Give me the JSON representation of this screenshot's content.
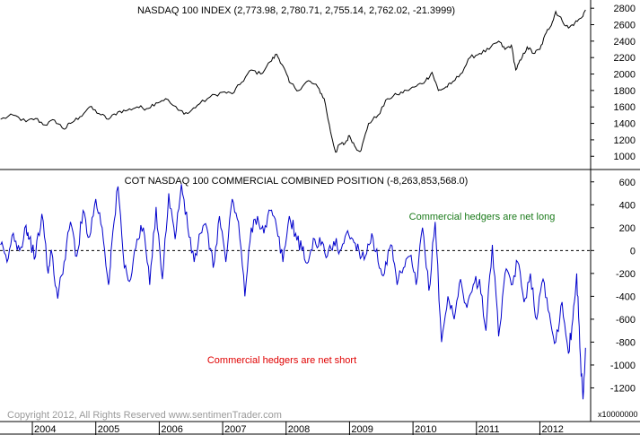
{
  "chart_data": [
    {
      "type": "line",
      "title": "NASDAQ 100 INDEX (2,773.98, 2,780.71, 2,755.14, 2,762.02, -21.3999)",
      "ylim": [
        850,
        2900
      ],
      "y_ticks": [
        1000,
        1200,
        1400,
        1600,
        1800,
        2000,
        2200,
        2400,
        2600,
        2800
      ],
      "y_tick_labels": [
        "1000",
        "1200",
        "1400",
        "1600",
        "1800",
        "2000",
        "2200",
        "2400",
        "2600",
        "2800"
      ],
      "grid": false,
      "series": [
        {
          "color": "#000000",
          "x": [
            2003.5,
            2003.7,
            2003.9,
            2004.05,
            2004.2,
            2004.35,
            2004.5,
            2004.6,
            2004.75,
            2004.9,
            2005.05,
            2005.2,
            2005.35,
            2005.5,
            2005.65,
            2005.8,
            2005.95,
            2006.1,
            2006.3,
            2006.45,
            2006.6,
            2006.8,
            2007.0,
            2007.15,
            2007.3,
            2007.45,
            2007.6,
            2007.75,
            2007.85,
            2007.95,
            2008.05,
            2008.2,
            2008.35,
            2008.5,
            2008.6,
            2008.7,
            2008.78,
            2008.85,
            2008.92,
            2009.0,
            2009.1,
            2009.18,
            2009.3,
            2009.45,
            2009.6,
            2009.75,
            2009.9,
            2010.05,
            2010.2,
            2010.3,
            2010.4,
            2010.5,
            2010.6,
            2010.75,
            2010.9,
            2011.05,
            2011.2,
            2011.35,
            2011.45,
            2011.55,
            2011.62,
            2011.7,
            2011.8,
            2011.9,
            2012.0,
            2012.1,
            2012.2,
            2012.25,
            2012.35,
            2012.45,
            2012.55,
            2012.65,
            2012.72
          ],
          "y": [
            1450,
            1500,
            1420,
            1460,
            1380,
            1440,
            1330,
            1400,
            1480,
            1600,
            1520,
            1450,
            1540,
            1560,
            1600,
            1580,
            1650,
            1700,
            1560,
            1520,
            1620,
            1720,
            1780,
            1760,
            1900,
            2050,
            2000,
            2150,
            2240,
            2100,
            1900,
            1800,
            1920,
            1840,
            1700,
            1300,
            1050,
            1150,
            1150,
            1250,
            1100,
            1070,
            1400,
            1500,
            1700,
            1750,
            1800,
            1850,
            1920,
            2020,
            1800,
            1830,
            1880,
            2000,
            2200,
            2250,
            2300,
            2400,
            2300,
            2350,
            2050,
            2170,
            2330,
            2250,
            2300,
            2500,
            2640,
            2760,
            2650,
            2560,
            2620,
            2680,
            2780
          ]
        }
      ]
    },
    {
      "type": "line",
      "title": "COT NASDAQ 100 COMMERCIAL COMBINED POSITION (-8,263,853,568.0)",
      "ylim": [
        -1400,
        700
      ],
      "y_ticks": [
        -1200,
        -1000,
        -800,
        -600,
        -400,
        -200,
        0,
        200,
        400,
        600
      ],
      "y_tick_labels": [
        "-1200",
        "-1000",
        "-800",
        "-600",
        "-400",
        "-200",
        "0",
        "200",
        "400",
        "600"
      ],
      "y_multiplier": "x10000000",
      "reference_line": 0,
      "grid": false,
      "annotations": [
        {
          "text": "Commercial hedgers are net long",
          "color": "#1a7a1a"
        },
        {
          "text": "Commercial hedgers are net short",
          "color": "#e00000"
        }
      ],
      "series": [
        {
          "color": "#0000cc",
          "x": [
            2003.5,
            2003.6,
            2003.7,
            2003.8,
            2003.9,
            2003.95,
            2004.05,
            2004.15,
            2004.25,
            2004.3,
            2004.4,
            2004.5,
            2004.6,
            2004.7,
            2004.8,
            2004.9,
            2005.0,
            2005.1,
            2005.2,
            2005.25,
            2005.35,
            2005.45,
            2005.55,
            2005.65,
            2005.75,
            2005.85,
            2005.95,
            2006.05,
            2006.15,
            2006.25,
            2006.35,
            2006.45,
            2006.55,
            2006.65,
            2006.75,
            2006.85,
            2006.95,
            2007.05,
            2007.15,
            2007.25,
            2007.35,
            2007.45,
            2007.55,
            2007.65,
            2007.75,
            2007.85,
            2007.95,
            2008.05,
            2008.15,
            2008.25,
            2008.35,
            2008.45,
            2008.55,
            2008.65,
            2008.75,
            2008.85,
            2008.95,
            2009.05,
            2009.15,
            2009.25,
            2009.35,
            2009.45,
            2009.55,
            2009.65,
            2009.75,
            2009.85,
            2009.95,
            2010.05,
            2010.15,
            2010.25,
            2010.35,
            2010.45,
            2010.55,
            2010.65,
            2010.75,
            2010.85,
            2010.95,
            2011.05,
            2011.15,
            2011.25,
            2011.35,
            2011.45,
            2011.55,
            2011.65,
            2011.75,
            2011.85,
            2011.95,
            2012.05,
            2012.15,
            2012.25,
            2012.35,
            2012.45,
            2012.52,
            2012.58,
            2012.63,
            2012.68,
            2012.72
          ],
          "y": [
            50,
            -100,
            150,
            0,
            220,
            100,
            -50,
            320,
            -200,
            0,
            -420,
            -100,
            250,
            -50,
            350,
            120,
            450,
            200,
            -300,
            50,
            560,
            -150,
            -250,
            100,
            200,
            -300,
            380,
            -250,
            500,
            100,
            580,
            200,
            -100,
            150,
            200,
            -150,
            300,
            -100,
            450,
            250,
            -400,
            200,
            300,
            150,
            350,
            200,
            -100,
            300,
            150,
            0,
            -100,
            100,
            50,
            -50,
            80,
            0,
            150,
            100,
            0,
            -50,
            150,
            -100,
            -200,
            50,
            -300,
            -150,
            -50,
            -300,
            200,
            -350,
            250,
            -800,
            -400,
            -600,
            -250,
            -500,
            -300,
            -250,
            -700,
            50,
            -750,
            -200,
            -300,
            -100,
            -450,
            -200,
            -600,
            -250,
            -550,
            -800,
            -450,
            -900,
            -600,
            -200,
            -850,
            -1300,
            -850
          ]
        }
      ]
    }
  ],
  "x_axis": {
    "tick_labels": [
      "2004",
      "2005",
      "2006",
      "2007",
      "2008",
      "2009",
      "2010",
      "2011",
      "2012"
    ],
    "xlim": [
      2003.49,
      2012.8
    ]
  },
  "copyright": "Copyright 2012, All Rights Reserved  www.sentimenTrader.com"
}
